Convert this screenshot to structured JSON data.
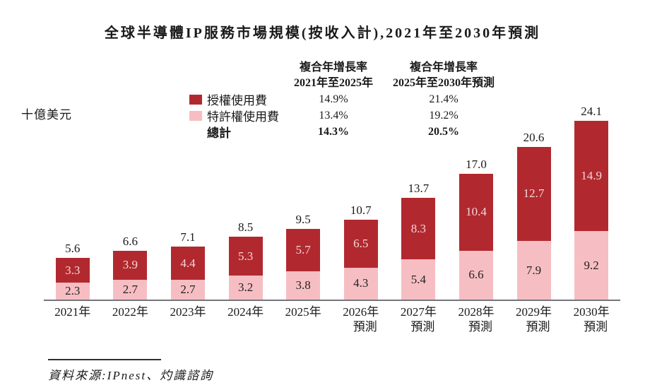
{
  "title": "全球半導體IP服務市場規模(按收入計),2021年至2030年預測",
  "y_axis_unit": "十億美元",
  "legend": {
    "items": [
      {
        "label": "授權使用費",
        "color": "#B1292F"
      },
      {
        "label": "特許權使用費",
        "color": "#F6BEC3"
      },
      {
        "label": "總計",
        "color": null
      }
    ]
  },
  "cagr": {
    "columns": [
      {
        "header_line1": "複合年增長率",
        "header_line2": "2021年至2025年",
        "values": [
          "14.9%",
          "13.4%",
          "14.3%"
        ]
      },
      {
        "header_line1": "複合年增長率",
        "header_line2": "2025年至2030年預測",
        "values": [
          "21.4%",
          "19.2%",
          "20.5%"
        ]
      }
    ]
  },
  "source": "資料來源:IPnest、灼識諮詢",
  "colors": {
    "bar_licensing": "#B1292F",
    "bar_royalty": "#F6BEC3",
    "licensing_label_text": "#F3D8DA",
    "royalty_label_text": "#222222",
    "axis_line": "#76767a"
  },
  "chart_data": {
    "type": "bar",
    "stacked": true,
    "title": "全球半導體IP服務市場規模(按收入計),2021年至2030年預測",
    "ylabel": "十億美元",
    "xlabel": "",
    "grid": false,
    "legend_position": "top-left",
    "categories": [
      "2021年",
      "2022年",
      "2023年",
      "2024年",
      "2025年",
      "2026年 預測",
      "2027年 預測",
      "2028年 預測",
      "2029年 預測",
      "2030年 預測"
    ],
    "series": [
      {
        "name": "授權使用費",
        "color": "#B1292F",
        "values": [
          3.3,
          3.9,
          4.4,
          5.3,
          5.7,
          6.5,
          8.3,
          10.4,
          12.7,
          14.9
        ]
      },
      {
        "name": "特許權使用費",
        "color": "#F6BEC3",
        "values": [
          2.3,
          2.7,
          2.7,
          3.2,
          3.8,
          4.3,
          5.4,
          6.6,
          7.9,
          9.2
        ]
      }
    ],
    "totals": [
      5.6,
      6.6,
      7.1,
      8.5,
      9.5,
      10.7,
      13.7,
      17.0,
      20.6,
      24.1
    ],
    "ylim": [
      0,
      27
    ]
  }
}
